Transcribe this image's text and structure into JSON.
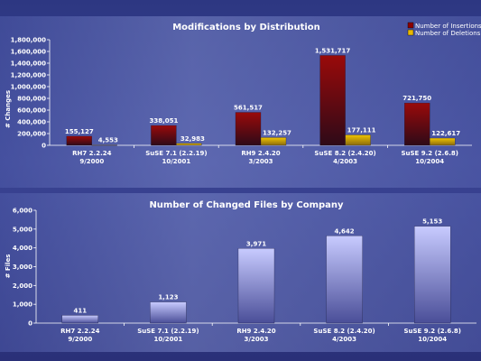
{
  "chart_data": [
    {
      "type": "bar",
      "title": "Modifications by Distribution",
      "ylabel": "# Changes",
      "xlabel": "",
      "ylim": [
        0,
        1800000
      ],
      "yticks": [
        "0",
        "200,000",
        "400,000",
        "600,000",
        "800,000",
        "1,000,000",
        "1,200,000",
        "1,400,000",
        "1,600,000",
        "1,800,000"
      ],
      "categories": [
        [
          "RH7 2.2.24",
          "9/2000"
        ],
        [
          "SuSE 7.1 (2.2.19)",
          "10/2001"
        ],
        [
          "RH9 2.4.20",
          "3/2003"
        ],
        [
          "SuSE 8.2 (2.4.20)",
          "4/2003"
        ],
        [
          "SuSE 9.2 (2.6.8)",
          "10/2004"
        ]
      ],
      "legend_position": "top-right",
      "series": [
        {
          "name": "Number of Insertions",
          "color": "#8b0000",
          "values": [
            155127,
            338051,
            561517,
            1531717,
            721750
          ],
          "labels": [
            "155,127",
            "338,051",
            "561,517",
            "1,531,717",
            "721,750"
          ]
        },
        {
          "name": "Number of Deletions",
          "color": "#e8b800",
          "values": [
            4553,
            32983,
            132257,
            177111,
            122617
          ],
          "labels": [
            "4,553",
            "32,983",
            "132,257",
            "177,111",
            "122,617"
          ]
        }
      ],
      "grid": false
    },
    {
      "type": "bar",
      "title": "Number of Changed Files by Company",
      "ylabel": "# Files",
      "xlabel": "",
      "ylim": [
        0,
        6000
      ],
      "yticks": [
        "0",
        "1,000",
        "2,000",
        "3,000",
        "4,000",
        "5,000",
        "6,000"
      ],
      "categories": [
        [
          "RH7 2.2.24",
          "9/2000"
        ],
        [
          "SuSE 7.1 (2.2.19)",
          "10/2001"
        ],
        [
          "RH9 2.4.20",
          "3/2003"
        ],
        [
          "SuSE 8.2 (2.4.20)",
          "4/2003"
        ],
        [
          "SuSE 9.2 (2.6.8)",
          "10/2004"
        ]
      ],
      "series": [
        {
          "color": "#b8bcf0",
          "values": [
            411,
            1123,
            3971,
            4642,
            5153
          ],
          "labels": [
            "411",
            "1,123",
            "3,971",
            "4,642",
            "5,153"
          ]
        }
      ],
      "grid": false
    }
  ]
}
